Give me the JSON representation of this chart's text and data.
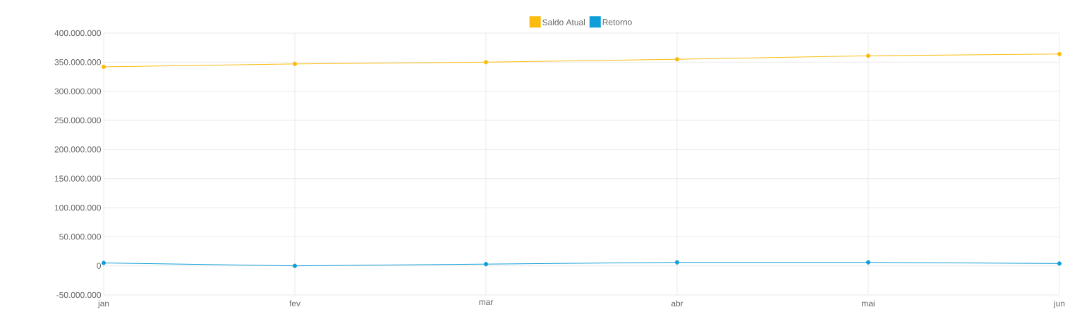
{
  "chart_data": {
    "type": "line",
    "categories": [
      "jan",
      "fev",
      "mar",
      "abr",
      "mai",
      "jun"
    ],
    "series": [
      {
        "name": "Saldo Atual",
        "color": "#fbbc0e",
        "values": [
          342000000,
          347000000,
          350000000,
          355000000,
          361000000,
          364000000
        ]
      },
      {
        "name": "Retorno",
        "color": "#109ed8",
        "values": [
          5000000,
          0,
          3000000,
          6000000,
          6000000,
          4000000
        ]
      }
    ],
    "ylim": [
      -50000000,
      400000000
    ],
    "yticks": [
      {
        "value": 400000000,
        "label": "400.000.000"
      },
      {
        "value": 350000000,
        "label": "350.000.000"
      },
      {
        "value": 300000000,
        "label": "300.000.000"
      },
      {
        "value": 250000000,
        "label": "250.000.000"
      },
      {
        "value": 200000000,
        "label": "200.000.000"
      },
      {
        "value": 150000000,
        "label": "150.000.000"
      },
      {
        "value": 100000000,
        "label": "100.000.000"
      },
      {
        "value": 50000000,
        "label": "50.000.000"
      },
      0,
      {
        "value": -50000000,
        "label": "-50.000.000"
      }
    ],
    "grid": true,
    "legend": "top",
    "marker": "circle",
    "line_style": "solid"
  }
}
